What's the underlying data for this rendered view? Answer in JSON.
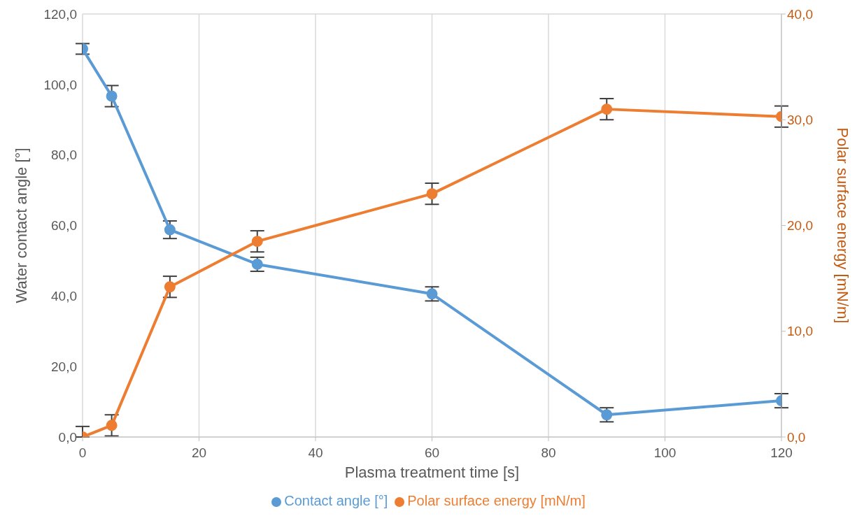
{
  "chart_data": {
    "type": "line",
    "xlabel": "Plasma treatment time [s]",
    "ylabel": "Water contact angle [°]",
    "y2label": "Polar surface energy [mN/m]",
    "x": [
      0,
      5,
      15,
      30,
      60,
      90,
      120
    ],
    "series": [
      {
        "name": "Contact angle [°]",
        "color": "#5b9bd5",
        "values": [
          110.1,
          96.7,
          58.8,
          49.0,
          40.6,
          6.3,
          10.3
        ],
        "errors": [
          1.5,
          3,
          2.5,
          2,
          2,
          2,
          2
        ]
      },
      {
        "name": "Polar surface energy [mN/m]",
        "color": "#ed7d31",
        "axis": "y2",
        "values": [
          0,
          1.1,
          14.2,
          18.5,
          23.0,
          31.0,
          30.3
        ],
        "errors": [
          [
            0,
            1
          ],
          1,
          1,
          1,
          1,
          1,
          1
        ]
      }
    ],
    "xlim": [
      0,
      120
    ],
    "xticks": [
      0,
      20,
      40,
      60,
      80,
      100,
      120
    ],
    "ylim": [
      0,
      120
    ],
    "yticks": [
      {
        "value": 0,
        "label": "0,0"
      },
      {
        "value": 20,
        "label": "20,0"
      },
      {
        "value": 40,
        "label": "40,0"
      },
      {
        "value": 60,
        "label": "60,0"
      },
      {
        "value": 80,
        "label": "80,0"
      },
      {
        "value": 100,
        "label": "100,0"
      },
      {
        "value": 120,
        "label": "120,0"
      }
    ],
    "y2lim": [
      0,
      40
    ],
    "y2ticks": [
      {
        "value": 0,
        "label": "0,0"
      },
      {
        "value": 10,
        "label": "10,0"
      },
      {
        "value": 20,
        "label": "20,0"
      },
      {
        "value": 30,
        "label": "30,0"
      },
      {
        "value": 40,
        "label": "40,0"
      }
    ],
    "grid": true,
    "legend": "bottom",
    "marker": "circle",
    "line_style": "solid"
  }
}
